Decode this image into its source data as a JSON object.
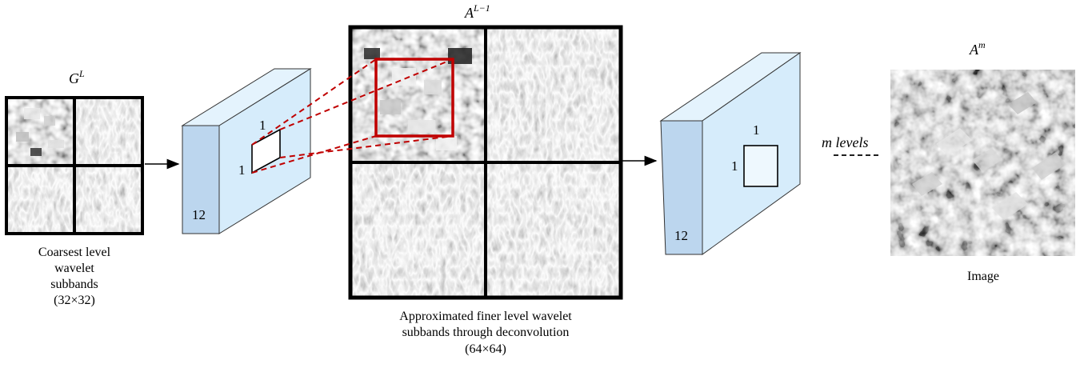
{
  "labels": {
    "gl_base": "G",
    "gl_sup": "L",
    "al1_base": "A",
    "al1_sup": "L−1",
    "am_base": "A",
    "am_sup": "m",
    "coarse_line1": "Coarsest level",
    "coarse_line2": "wavelet",
    "coarse_line3": "subbands",
    "coarse_line4": "(32×32)",
    "approx_line1": "Approximated finer level wavelet",
    "approx_line2": "subbands through deconvolution",
    "approx_line3": "(64×64)",
    "image_label": "Image",
    "m_levels": "m levels"
  },
  "block1": {
    "depth_label": "12",
    "kernel_h": "1",
    "kernel_w": "1"
  },
  "block2": {
    "depth_label": "12",
    "kernel_h": "1",
    "kernel_w": "1"
  },
  "colors": {
    "block_front": "#d6ecfb",
    "block_side": "#bcd6ee",
    "block_top": "#e4f3fd",
    "highlight": "#c00000",
    "dashed_line": "#c00000",
    "grid_border": "#000000"
  }
}
